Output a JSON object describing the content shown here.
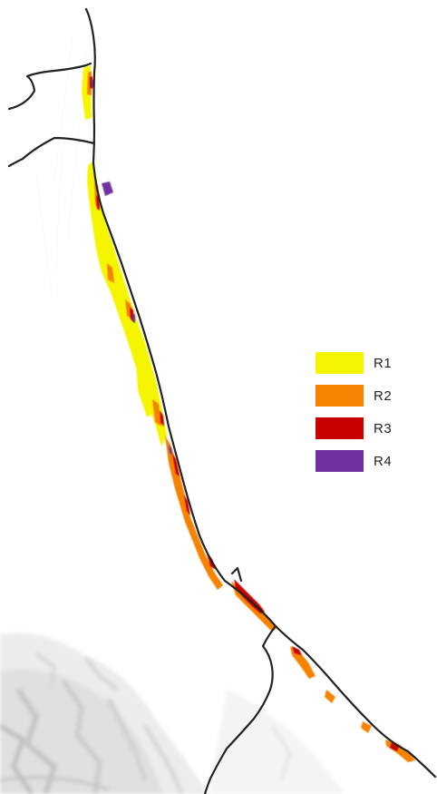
{
  "legend": {
    "items": [
      {
        "label": "R1",
        "color": "#f5f500"
      },
      {
        "label": "R2",
        "color": "#f58200"
      },
      {
        "label": "R3",
        "color": "#c80000"
      },
      {
        "label": "R4",
        "color": "#7030a0"
      }
    ]
  },
  "map": {
    "background": "#ffffff",
    "boundary_color": "#222222",
    "relief_color": "#d8d8d8"
  }
}
